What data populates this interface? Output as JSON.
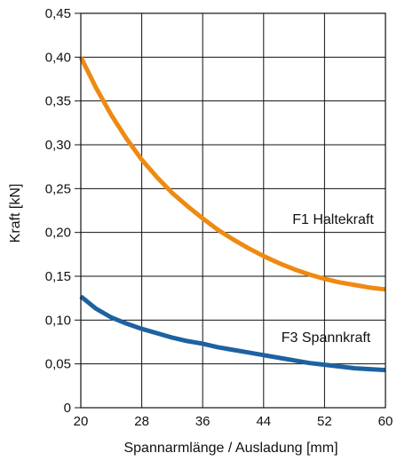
{
  "chart_data": {
    "type": "line",
    "title": "",
    "xlabel": "Spannarmlänge / Ausladung [mm]",
    "ylabel": "Kraft [kN]",
    "xlim": [
      20,
      60
    ],
    "ylim": [
      0,
      0.45
    ],
    "x_ticks": [
      20,
      28,
      36,
      44,
      52,
      60
    ],
    "y_ticks": [
      "0",
      "0,05",
      "0,10",
      "0,15",
      "0,20",
      "0,25",
      "0,30",
      "0,35",
      "0,40",
      "0,45"
    ],
    "grid": true,
    "series": [
      {
        "name": "F1 Haltekraft",
        "color": "#ee8a12",
        "x": [
          20,
          22,
          24,
          26,
          28,
          30,
          32,
          34,
          36,
          38,
          40,
          42,
          44,
          46,
          48,
          50,
          52,
          54,
          56,
          58,
          60
        ],
        "values": [
          0.4,
          0.365,
          0.334,
          0.307,
          0.283,
          0.263,
          0.245,
          0.23,
          0.216,
          0.203,
          0.192,
          0.182,
          0.173,
          0.165,
          0.158,
          0.152,
          0.147,
          0.143,
          0.14,
          0.137,
          0.135
        ]
      },
      {
        "name": "F3 Spannkraft",
        "color": "#1d62a0",
        "x": [
          20,
          22,
          24,
          26,
          28,
          30,
          32,
          34,
          36,
          38,
          40,
          42,
          44,
          46,
          48,
          50,
          52,
          54,
          56,
          58,
          60
        ],
        "values": [
          0.127,
          0.113,
          0.103,
          0.096,
          0.09,
          0.085,
          0.08,
          0.076,
          0.073,
          0.069,
          0.066,
          0.063,
          0.06,
          0.057,
          0.054,
          0.051,
          0.049,
          0.047,
          0.045,
          0.044,
          0.043
        ]
      }
    ]
  }
}
